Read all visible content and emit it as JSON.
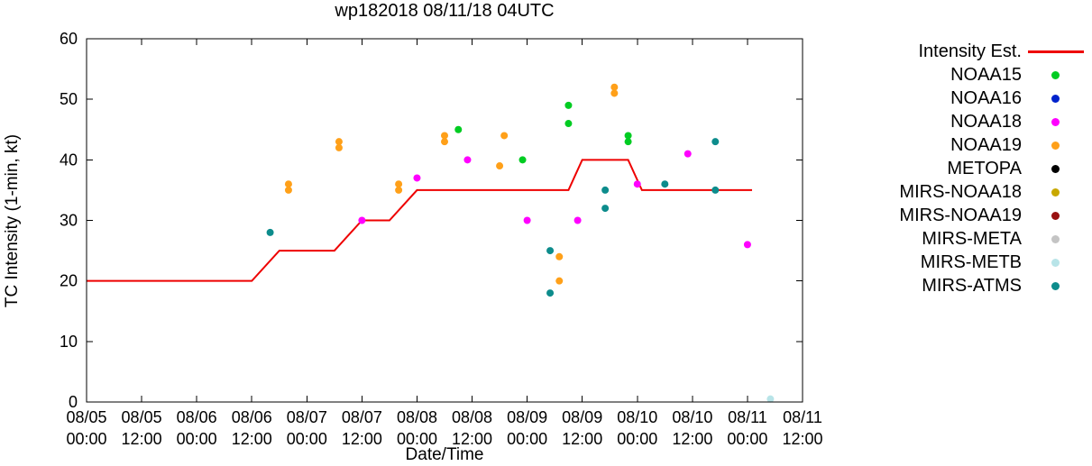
{
  "title": "wp182018 08/11/18 04UTC",
  "axes": {
    "ylabel": "TC Intensity (1-min, kt)",
    "xlabel": "Date/Time",
    "y_ticks": [
      0,
      10,
      20,
      30,
      40,
      50,
      60
    ],
    "x_ticks": [
      {
        "date": "08/05",
        "time": "00:00"
      },
      {
        "date": "08/05",
        "time": "12:00"
      },
      {
        "date": "08/06",
        "time": "00:00"
      },
      {
        "date": "08/06",
        "time": "12:00"
      },
      {
        "date": "08/07",
        "time": "00:00"
      },
      {
        "date": "08/07",
        "time": "12:00"
      },
      {
        "date": "08/08",
        "time": "00:00"
      },
      {
        "date": "08/08",
        "time": "12:00"
      },
      {
        "date": "08/09",
        "time": "00:00"
      },
      {
        "date": "08/09",
        "time": "12:00"
      },
      {
        "date": "08/10",
        "time": "00:00"
      },
      {
        "date": "08/10",
        "time": "12:00"
      },
      {
        "date": "08/11",
        "time": "00:00"
      },
      {
        "date": "08/11",
        "time": "12:00"
      }
    ]
  },
  "legend": [
    {
      "label": "Intensity Est.",
      "type": "line",
      "color": "#ee0000"
    },
    {
      "label": "NOAA15",
      "type": "dot",
      "color": "#00cc22"
    },
    {
      "label": "NOAA16",
      "type": "dot",
      "color": "#0022cc"
    },
    {
      "label": "NOAA18",
      "type": "dot",
      "color": "#ff00ff"
    },
    {
      "label": "NOAA19",
      "type": "dot",
      "color": "#ffa019"
    },
    {
      "label": "METOPA",
      "type": "dot",
      "color": "#000000"
    },
    {
      "label": "MIRS-NOAA18",
      "type": "dot",
      "color": "#c8a800"
    },
    {
      "label": "MIRS-NOAA19",
      "type": "dot",
      "color": "#991111"
    },
    {
      "label": "MIRS-META",
      "type": "dot",
      "color": "#c4c4c4"
    },
    {
      "label": "MIRS-METB",
      "type": "dot",
      "color": "#b8e4e8"
    },
    {
      "label": "MIRS-ATMS",
      "type": "dot",
      "color": "#0d8c8c"
    }
  ],
  "chart_data": {
    "type": "line+scatter",
    "title": "wp182018 08/11/18 04UTC",
    "xlabel": "Date/Time",
    "ylabel": "TC Intensity (1-min, kt)",
    "x_axis": {
      "unit": "hours since 08/05 00:00",
      "range": [
        0,
        156
      ],
      "tick_interval_hours": 12
    },
    "ylim": [
      0,
      60
    ],
    "grid": false,
    "legend_position": "right-outside",
    "intensity_line": {
      "name": "Intensity Est.",
      "color": "#ee0000",
      "points": [
        [
          0,
          20
        ],
        [
          36,
          20
        ],
        [
          42,
          25
        ],
        [
          54,
          25
        ],
        [
          60,
          30
        ],
        [
          66,
          30
        ],
        [
          72,
          35
        ],
        [
          105,
          35
        ],
        [
          108,
          40
        ],
        [
          118,
          40
        ],
        [
          121,
          35
        ],
        [
          145,
          35
        ]
      ]
    },
    "series": [
      {
        "name": "NOAA15",
        "color": "#00cc22",
        "points": [
          [
            81,
            45
          ],
          [
            95,
            40
          ],
          [
            105,
            49
          ],
          [
            105,
            46
          ],
          [
            118,
            44
          ],
          [
            118,
            43
          ]
        ]
      },
      {
        "name": "NOAA16",
        "color": "#0022cc",
        "points": []
      },
      {
        "name": "NOAA18",
        "color": "#ff00ff",
        "points": [
          [
            60,
            30
          ],
          [
            72,
            37
          ],
          [
            83,
            40
          ],
          [
            96,
            30
          ],
          [
            107,
            30
          ],
          [
            120,
            36
          ],
          [
            131,
            41
          ],
          [
            144,
            26
          ]
        ]
      },
      {
        "name": "NOAA19",
        "color": "#ffa019",
        "points": [
          [
            44,
            36
          ],
          [
            44,
            35
          ],
          [
            55,
            43
          ],
          [
            55,
            42
          ],
          [
            68,
            36
          ],
          [
            68,
            35
          ],
          [
            78,
            44
          ],
          [
            78,
            43
          ],
          [
            91,
            44
          ],
          [
            90,
            39
          ],
          [
            103,
            24
          ],
          [
            103,
            20
          ],
          [
            115,
            52
          ],
          [
            115,
            51
          ]
        ]
      },
      {
        "name": "METOPA",
        "color": "#000000",
        "points": []
      },
      {
        "name": "MIRS-NOAA18",
        "color": "#c8a800",
        "points": []
      },
      {
        "name": "MIRS-NOAA19",
        "color": "#991111",
        "points": []
      },
      {
        "name": "MIRS-META",
        "color": "#c4c4c4",
        "points": []
      },
      {
        "name": "MIRS-METB",
        "color": "#b8e4e8",
        "points": [
          [
            149,
            0.5
          ]
        ]
      },
      {
        "name": "MIRS-ATMS",
        "color": "#0d8c8c",
        "points": [
          [
            40,
            28
          ],
          [
            101,
            25
          ],
          [
            101,
            18
          ],
          [
            113,
            35
          ],
          [
            113,
            32
          ],
          [
            126,
            36
          ],
          [
            137,
            43
          ],
          [
            137,
            35
          ]
        ]
      }
    ]
  }
}
